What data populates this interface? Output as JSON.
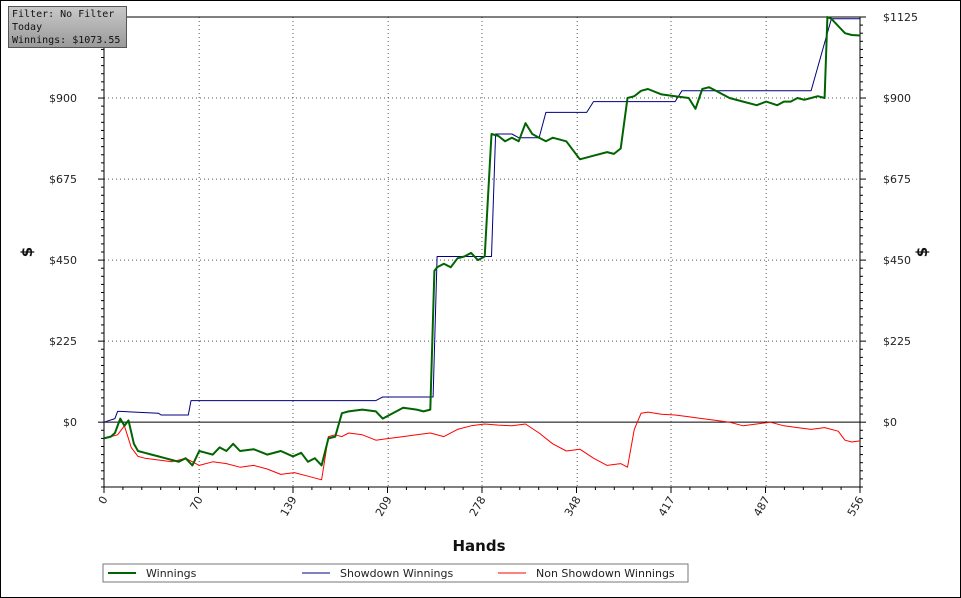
{
  "info": {
    "filter": "Filter: No Filter",
    "period": "Today",
    "winnings": "Winnings: $1073.55"
  },
  "chart_data": {
    "type": "line",
    "xlabel": "Hands",
    "ylabel": "$",
    "ylabel_right": "$",
    "xlim": [
      0,
      556
    ],
    "ylim": [
      -180,
      1125
    ],
    "x_ticks": [
      "0",
      "70",
      "139",
      "209",
      "278",
      "348",
      "417",
      "487",
      "556"
    ],
    "x_tick_values": [
      0,
      70,
      139,
      209,
      278,
      348,
      417,
      487,
      556
    ],
    "y_ticks": [
      "$0",
      "$225",
      "$450",
      "$675",
      "$900"
    ],
    "y_tick_values": [
      0,
      225,
      450,
      675,
      900
    ],
    "y_ticks_right": [
      "$0",
      "$225",
      "$450",
      "$675",
      "$900",
      "$1125"
    ],
    "y_tick_values_right": [
      0,
      225,
      450,
      675,
      900,
      1125
    ],
    "grid": true,
    "legend_position": "bottom",
    "series": [
      {
        "name": "Winnings",
        "color": "#006400",
        "x": [
          0,
          5,
          8,
          12,
          15,
          18,
          22,
          25,
          30,
          35,
          40,
          45,
          50,
          55,
          60,
          65,
          70,
          75,
          80,
          85,
          90,
          95,
          100,
          110,
          120,
          130,
          139,
          145,
          150,
          155,
          160,
          165,
          170,
          175,
          180,
          190,
          200,
          205,
          210,
          220,
          230,
          235,
          240,
          243,
          245,
          250,
          255,
          260,
          265,
          270,
          275,
          280,
          285,
          290,
          295,
          300,
          305,
          310,
          315,
          320,
          325,
          330,
          340,
          350,
          360,
          370,
          375,
          380,
          385,
          390,
          395,
          400,
          410,
          420,
          430,
          435,
          440,
          445,
          450,
          460,
          470,
          480,
          487,
          495,
          500,
          505,
          510,
          515,
          520,
          525,
          530,
          532,
          535,
          540,
          545,
          550,
          556
        ],
        "y": [
          -45,
          -40,
          -30,
          10,
          -10,
          5,
          -60,
          -80,
          -85,
          -90,
          -95,
          -100,
          -105,
          -110,
          -100,
          -120,
          -80,
          -85,
          -90,
          -70,
          -80,
          -60,
          -80,
          -75,
          -90,
          -80,
          -95,
          -85,
          -110,
          -100,
          -120,
          -45,
          -40,
          25,
          30,
          35,
          30,
          10,
          20,
          40,
          35,
          30,
          35,
          420,
          430,
          440,
          430,
          455,
          460,
          470,
          450,
          460,
          800,
          795,
          780,
          790,
          780,
          830,
          800,
          790,
          780,
          790,
          780,
          730,
          740,
          750,
          745,
          760,
          900,
          905,
          920,
          925,
          910,
          905,
          900,
          870,
          925,
          930,
          920,
          900,
          890,
          880,
          890,
          880,
          890,
          890,
          900,
          895,
          900,
          905,
          900,
          1125,
          1120,
          1100,
          1080,
          1075,
          1073.55
        ]
      },
      {
        "name": "Showdown Winnings",
        "color": "#000080",
        "x": [
          0,
          8,
          10,
          12,
          40,
          42,
          62,
          64,
          200,
          205,
          242,
          245,
          285,
          288,
          300,
          305,
          320,
          325,
          355,
          360,
          420,
          425,
          520,
          535,
          556
        ],
        "y": [
          0,
          10,
          30,
          30,
          25,
          20,
          20,
          60,
          60,
          70,
          70,
          460,
          460,
          800,
          800,
          790,
          790,
          860,
          860,
          890,
          890,
          920,
          920,
          1120,
          1120
        ]
      },
      {
        "name": "Non Showdown Winnings",
        "color": "#ff0000",
        "x": [
          0,
          5,
          10,
          15,
          20,
          25,
          30,
          40,
          50,
          60,
          70,
          80,
          90,
          100,
          110,
          120,
          130,
          140,
          150,
          160,
          165,
          170,
          175,
          180,
          190,
          200,
          210,
          220,
          230,
          240,
          250,
          260,
          270,
          280,
          290,
          300,
          310,
          320,
          330,
          340,
          350,
          360,
          370,
          380,
          385,
          390,
          395,
          400,
          410,
          420,
          430,
          440,
          450,
          460,
          470,
          480,
          490,
          500,
          510,
          520,
          530,
          540,
          545,
          550,
          556
        ],
        "y": [
          -45,
          -40,
          -35,
          -10,
          -70,
          -95,
          -100,
          -105,
          -110,
          -100,
          -120,
          -110,
          -115,
          -125,
          -120,
          -130,
          -145,
          -140,
          -150,
          -160,
          -40,
          -35,
          -40,
          -30,
          -35,
          -50,
          -45,
          -40,
          -35,
          -30,
          -40,
          -20,
          -10,
          -5,
          -8,
          -10,
          -5,
          -30,
          -60,
          -80,
          -75,
          -100,
          -120,
          -115,
          -125,
          -20,
          25,
          28,
          22,
          20,
          15,
          10,
          5,
          0,
          -10,
          -5,
          0,
          -10,
          -15,
          -20,
          -15,
          -25,
          -50,
          -55,
          -52
        ]
      }
    ]
  }
}
